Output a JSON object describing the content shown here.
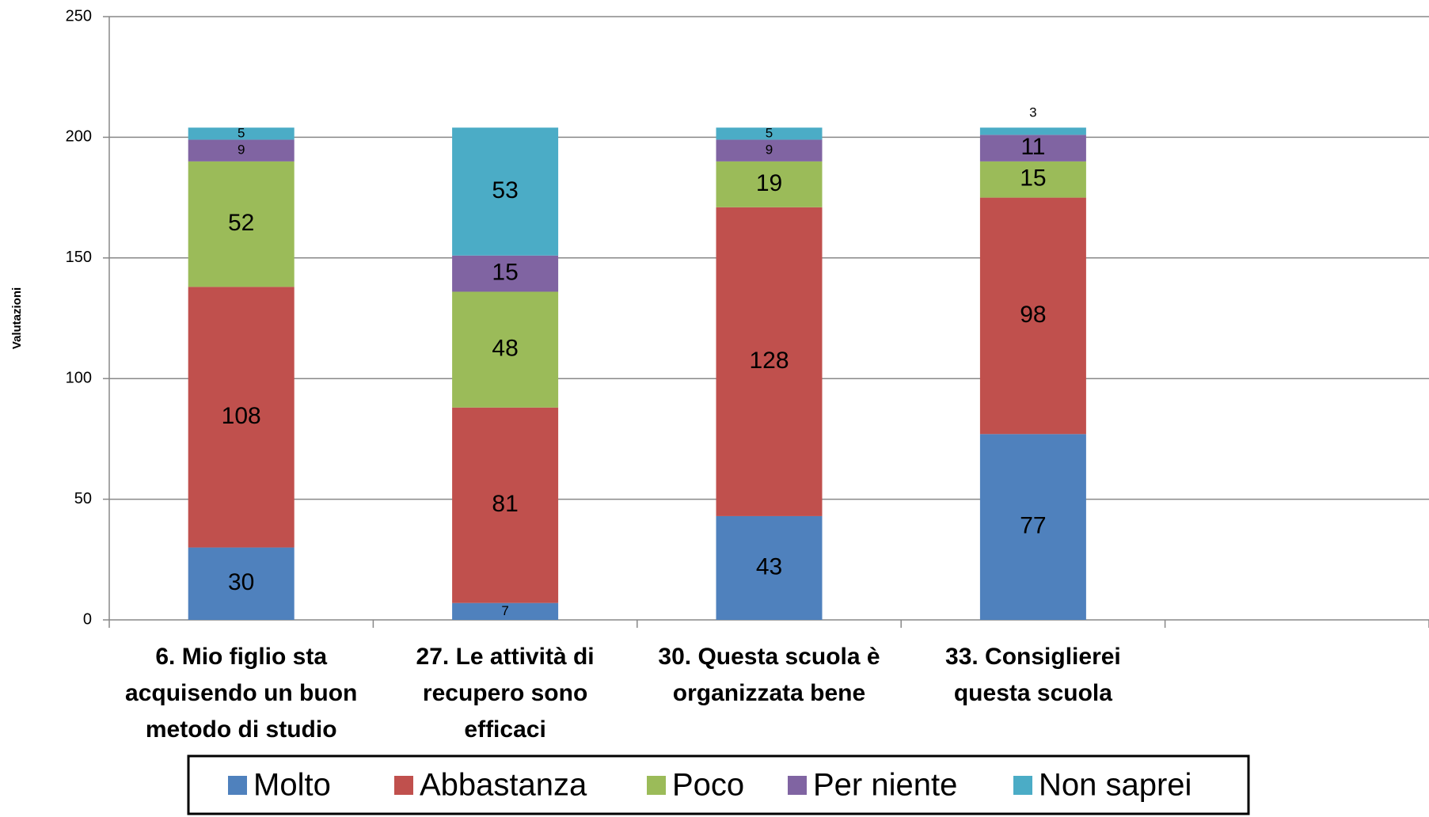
{
  "chart_data": {
    "type": "stacked_bar",
    "y_label": "Valutazioni",
    "categories": [
      "6. Mio figlio sta acquisendo un buon metodo di studio",
      "27. Le attività di recupero sono efficaci",
      "30. Questa scuola è organizzata bene",
      "33. Consiglierei questa scuola",
      null
    ],
    "series": [
      {
        "name": "Molto",
        "color": "#4f81bd",
        "values": [
          30,
          7,
          43,
          77,
          null
        ]
      },
      {
        "name": "Abbastanza",
        "color": "#c0504d",
        "values": [
          108,
          81,
          128,
          98,
          null
        ]
      },
      {
        "name": "Poco",
        "color": "#9bbb59",
        "values": [
          52,
          48,
          19,
          15,
          null
        ]
      },
      {
        "name": "Per niente",
        "color": "#8064a2",
        "values": [
          9,
          15,
          9,
          11,
          null
        ]
      },
      {
        "name": "Non saprei",
        "color": "#4bacc6",
        "values": [
          5,
          53,
          5,
          3,
          null
        ]
      }
    ],
    "ylim": [
      0,
      250
    ],
    "yticks": [
      0,
      50,
      100,
      150,
      200,
      250
    ],
    "grid": true,
    "legend": "bottom"
  }
}
